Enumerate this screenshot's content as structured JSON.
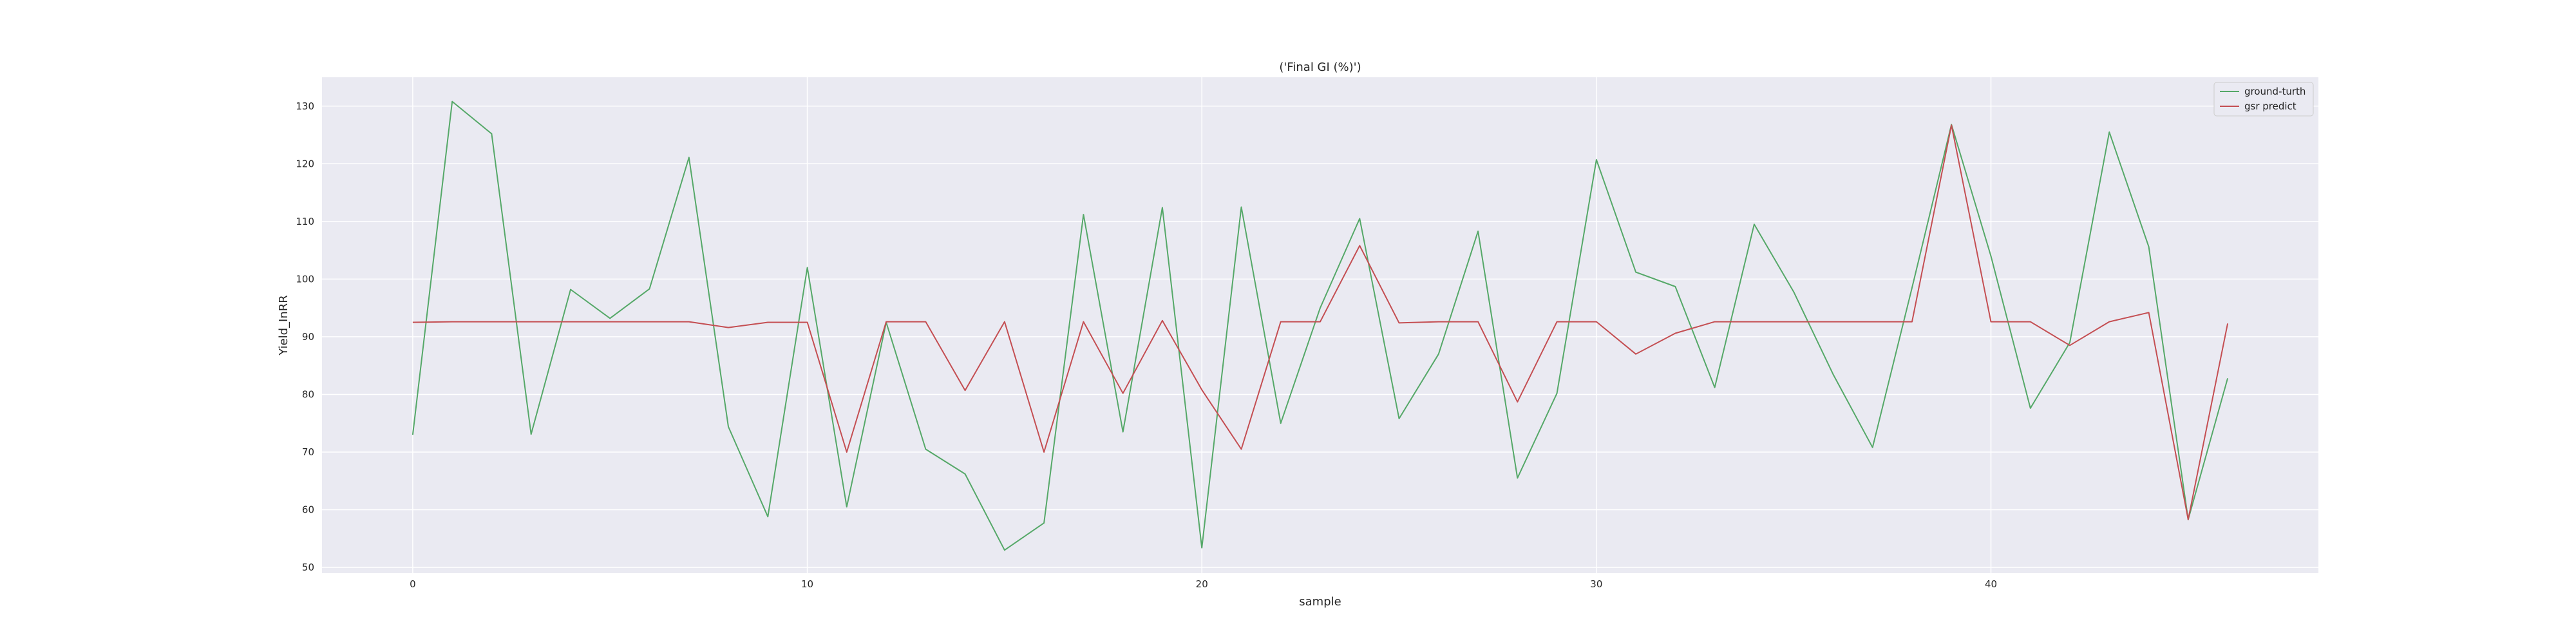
{
  "chart_data": {
    "type": "line",
    "title": "('Final GI (%)')",
    "xlabel": "sample",
    "ylabel": "Yield_InRR",
    "xlim": [
      -2.3,
      48.3
    ],
    "ylim": [
      49,
      135
    ],
    "xticks": [
      0,
      10,
      20,
      30,
      40
    ],
    "yticks": [
      50,
      60,
      70,
      80,
      90,
      100,
      110,
      120,
      130
    ],
    "grid": true,
    "legend_position": "top-right",
    "x": [
      0,
      1,
      2,
      3,
      4,
      5,
      6,
      7,
      8,
      9,
      10,
      11,
      12,
      13,
      14,
      15,
      16,
      17,
      18,
      19,
      20,
      21,
      22,
      23,
      24,
      25,
      26,
      27,
      28,
      29,
      30,
      31,
      32,
      33,
      34,
      35,
      36,
      37,
      38,
      39,
      40,
      41,
      42,
      43,
      44,
      45,
      46
    ],
    "series": [
      {
        "name": "ground-turth",
        "color": "#55a868",
        "values": [
          73.0,
          130.8,
          125.2,
          73.1,
          98.2,
          93.2,
          98.3,
          121.1,
          74.4,
          58.8,
          102.0,
          60.5,
          92.5,
          70.5,
          66.2,
          53.0,
          57.7,
          111.2,
          73.5,
          112.4,
          53.4,
          112.5,
          75.0,
          95.0,
          110.5,
          75.8,
          87.0,
          108.3,
          65.5,
          80.2,
          120.7,
          101.2,
          98.7,
          81.2,
          109.5,
          97.8,
          83.5,
          70.8,
          98.5,
          126.8,
          104.0,
          77.6,
          89.0,
          125.5,
          105.6,
          58.3,
          82.8
        ]
      },
      {
        "name": "gsr predict",
        "color": "#c44e52",
        "values": [
          92.5,
          92.6,
          92.6,
          92.6,
          92.6,
          92.6,
          92.6,
          92.6,
          91.6,
          92.5,
          92.5,
          70.0,
          92.6,
          92.6,
          80.7,
          92.6,
          70.0,
          92.6,
          80.2,
          92.8,
          80.8,
          70.5,
          92.6,
          92.6,
          105.8,
          92.4,
          92.6,
          92.6,
          78.7,
          92.6,
          92.6,
          87.0,
          90.6,
          92.6,
          92.6,
          92.6,
          92.6,
          92.6,
          92.6,
          126.7,
          92.6,
          92.6,
          88.5,
          92.6,
          94.2,
          58.3,
          92.3
        ]
      }
    ]
  }
}
